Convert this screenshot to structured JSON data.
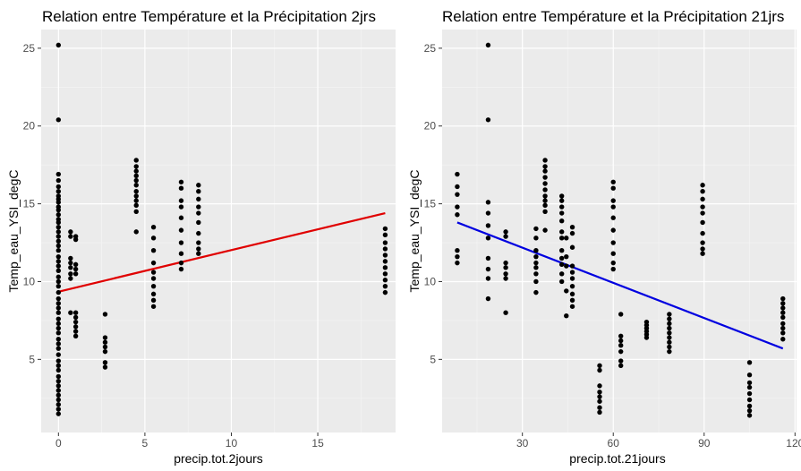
{
  "colors": {
    "panel_background": "#ebebeb",
    "grid_major": "#ffffff",
    "grid_minor": "#f5f5f5",
    "points": "#000000",
    "tick_text": "#4d4d4d"
  },
  "chart_data": [
    {
      "type": "scatter",
      "title": "Relation entre Température et la Précipitation 2jrs",
      "xlabel": "precip.tot.2jours",
      "ylabel": "Temp_eau_YSI_degC",
      "xlim": [
        -1,
        19.5
      ],
      "ylim": [
        0.3,
        26.2
      ],
      "x_ticks": [
        0,
        5,
        10,
        15
      ],
      "y_ticks": [
        5,
        10,
        15,
        20,
        25
      ],
      "grid": true,
      "trend_color": "#e00000",
      "trend_line": {
        "x": [
          0,
          18.9
        ],
        "y": [
          9.35,
          14.4
        ]
      },
      "points": [
        [
          0,
          25.2
        ],
        [
          0,
          20.4
        ],
        [
          0,
          16.9
        ],
        [
          0,
          16.5
        ],
        [
          0,
          16.1
        ],
        [
          0,
          15.8
        ],
        [
          0,
          15.5
        ],
        [
          0,
          15.3
        ],
        [
          0,
          15.1
        ],
        [
          0,
          14.8
        ],
        [
          0,
          14.6
        ],
        [
          0,
          14.3
        ],
        [
          0,
          14.0
        ],
        [
          0,
          13.8
        ],
        [
          0,
          13.5
        ],
        [
          0,
          13.2
        ],
        [
          0,
          12.9
        ],
        [
          0,
          12.6
        ],
        [
          0,
          12.3
        ],
        [
          0,
          12.0
        ],
        [
          0,
          11.6
        ],
        [
          0,
          11.3
        ],
        [
          0,
          11.0
        ],
        [
          0,
          10.7
        ],
        [
          0,
          10.3
        ],
        [
          0,
          10.0
        ],
        [
          0,
          9.7
        ],
        [
          0,
          9.3
        ],
        [
          0,
          8.9
        ],
        [
          0,
          8.6
        ],
        [
          0,
          8.3
        ],
        [
          0,
          8.0
        ],
        [
          0,
          7.6
        ],
        [
          0,
          7.3
        ],
        [
          0,
          7.0
        ],
        [
          0,
          6.7
        ],
        [
          0,
          6.3
        ],
        [
          0,
          6.0
        ],
        [
          0,
          5.7
        ],
        [
          0,
          5.3
        ],
        [
          0,
          4.9
        ],
        [
          0,
          4.6
        ],
        [
          0,
          4.3
        ],
        [
          0,
          3.9
        ],
        [
          0,
          3.6
        ],
        [
          0,
          3.3
        ],
        [
          0,
          3.0
        ],
        [
          0,
          2.7
        ],
        [
          0,
          2.4
        ],
        [
          0,
          2.1
        ],
        [
          0,
          1.8
        ],
        [
          0,
          1.5
        ],
        [
          0.7,
          13.2
        ],
        [
          0.7,
          12.9
        ],
        [
          0.7,
          11.5
        ],
        [
          0.7,
          11.2
        ],
        [
          0.7,
          10.9
        ],
        [
          0.7,
          10.5
        ],
        [
          0.7,
          10.2
        ],
        [
          0.7,
          8.0
        ],
        [
          1.0,
          12.9
        ],
        [
          1.0,
          12.7
        ],
        [
          1.0,
          11.1
        ],
        [
          1.0,
          10.8
        ],
        [
          1.0,
          10.5
        ],
        [
          1.0,
          8.0
        ],
        [
          1.0,
          7.7
        ],
        [
          1.0,
          7.4
        ],
        [
          1.0,
          7.1
        ],
        [
          1.0,
          6.8
        ],
        [
          1.0,
          6.5
        ],
        [
          2.7,
          7.9
        ],
        [
          2.7,
          6.4
        ],
        [
          2.7,
          6.1
        ],
        [
          2.7,
          5.8
        ],
        [
          2.7,
          5.5
        ],
        [
          2.7,
          4.8
        ],
        [
          2.7,
          4.5
        ],
        [
          4.5,
          17.8
        ],
        [
          4.5,
          17.4
        ],
        [
          4.5,
          17.1
        ],
        [
          4.5,
          16.8
        ],
        [
          4.5,
          16.5
        ],
        [
          4.5,
          16.2
        ],
        [
          4.5,
          15.8
        ],
        [
          4.5,
          15.5
        ],
        [
          4.5,
          15.2
        ],
        [
          4.5,
          14.9
        ],
        [
          4.5,
          14.5
        ],
        [
          4.5,
          13.2
        ],
        [
          5.5,
          13.5
        ],
        [
          5.5,
          12.8
        ],
        [
          5.5,
          12.0
        ],
        [
          5.5,
          11.2
        ],
        [
          5.5,
          10.6
        ],
        [
          5.5,
          10.2
        ],
        [
          5.5,
          9.7
        ],
        [
          5.5,
          9.2
        ],
        [
          5.5,
          8.8
        ],
        [
          5.5,
          8.4
        ],
        [
          7.1,
          16.4
        ],
        [
          7.1,
          16.0
        ],
        [
          7.1,
          15.2
        ],
        [
          7.1,
          14.8
        ],
        [
          7.1,
          14.1
        ],
        [
          7.1,
          13.3
        ],
        [
          7.1,
          12.5
        ],
        [
          7.1,
          11.8
        ],
        [
          7.1,
          11.2
        ],
        [
          7.1,
          10.8
        ],
        [
          8.1,
          16.2
        ],
        [
          8.1,
          15.8
        ],
        [
          8.1,
          15.3
        ],
        [
          8.1,
          14.8
        ],
        [
          8.1,
          14.4
        ],
        [
          8.1,
          13.8
        ],
        [
          8.1,
          13.1
        ],
        [
          8.1,
          12.5
        ],
        [
          8.1,
          12.1
        ],
        [
          8.1,
          11.8
        ],
        [
          18.9,
          13.4
        ],
        [
          18.9,
          13.0
        ],
        [
          18.9,
          12.5
        ],
        [
          18.9,
          12.1
        ],
        [
          18.9,
          11.7
        ],
        [
          18.9,
          11.3
        ],
        [
          18.9,
          10.9
        ],
        [
          18.9,
          10.5
        ],
        [
          18.9,
          10.1
        ],
        [
          18.9,
          9.7
        ],
        [
          18.9,
          9.3
        ]
      ]
    },
    {
      "type": "scatter",
      "title": "Relation entre Température et la Précipitation 21jrs",
      "xlabel": "precip.tot.21jours",
      "ylabel": "Temp_eau_YSI_degC",
      "xlim": [
        3.5,
        120.5
      ],
      "ylim": [
        0.3,
        26.2
      ],
      "x_ticks": [
        30,
        60,
        90,
        120
      ],
      "y_ticks": [
        5,
        10,
        15,
        20,
        25
      ],
      "grid": true,
      "trend_color": "#0000e0",
      "trend_line": {
        "x": [
          8.5,
          116
        ],
        "y": [
          13.8,
          5.7
        ]
      },
      "points": [
        [
          8.5,
          16.9
        ],
        [
          8.5,
          16.1
        ],
        [
          8.5,
          15.6
        ],
        [
          8.5,
          14.8
        ],
        [
          8.5,
          14.3
        ],
        [
          8.5,
          12.0
        ],
        [
          8.5,
          11.6
        ],
        [
          8.5,
          11.2
        ],
        [
          18.7,
          25.2
        ],
        [
          18.7,
          20.4
        ],
        [
          18.7,
          15.1
        ],
        [
          18.7,
          14.4
        ],
        [
          18.7,
          13.6
        ],
        [
          18.7,
          12.8
        ],
        [
          18.7,
          11.5
        ],
        [
          18.7,
          10.8
        ],
        [
          18.7,
          10.2
        ],
        [
          18.7,
          8.9
        ],
        [
          24.5,
          13.2
        ],
        [
          24.5,
          12.9
        ],
        [
          24.5,
          11.2
        ],
        [
          24.5,
          10.9
        ],
        [
          24.5,
          10.5
        ],
        [
          24.5,
          10.2
        ],
        [
          24.5,
          8.0
        ],
        [
          34.5,
          13.4
        ],
        [
          34.5,
          12.8
        ],
        [
          34.5,
          12.0
        ],
        [
          34.5,
          11.6
        ],
        [
          34.5,
          11.2
        ],
        [
          34.5,
          10.9
        ],
        [
          34.5,
          10.5
        ],
        [
          34.5,
          10.0
        ],
        [
          34.5,
          9.3
        ],
        [
          37.5,
          17.8
        ],
        [
          37.5,
          17.4
        ],
        [
          37.5,
          17.1
        ],
        [
          37.5,
          16.7
        ],
        [
          37.5,
          16.3
        ],
        [
          37.5,
          15.9
        ],
        [
          37.5,
          15.5
        ],
        [
          37.5,
          15.2
        ],
        [
          37.5,
          14.9
        ],
        [
          37.5,
          14.5
        ],
        [
          37.5,
          13.3
        ],
        [
          43,
          15.5
        ],
        [
          43,
          15.2
        ],
        [
          43,
          14.8
        ],
        [
          43,
          14.4
        ],
        [
          43,
          13.9
        ],
        [
          43,
          13.2
        ],
        [
          43,
          12.8
        ],
        [
          43,
          12.0
        ],
        [
          43,
          11.5
        ],
        [
          43,
          11.1
        ],
        [
          43,
          10.5
        ],
        [
          43,
          10.0
        ],
        [
          44.5,
          12.8
        ],
        [
          44.5,
          11.6
        ],
        [
          44.5,
          11.0
        ],
        [
          44.5,
          9.4
        ],
        [
          44.5,
          7.8
        ],
        [
          46.5,
          13.5
        ],
        [
          46.5,
          13.1
        ],
        [
          46.5,
          12.2
        ],
        [
          46.5,
          11.0
        ],
        [
          46.5,
          10.6
        ],
        [
          46.5,
          10.2
        ],
        [
          46.5,
          9.7
        ],
        [
          46.5,
          9.2
        ],
        [
          46.5,
          8.8
        ],
        [
          46.5,
          8.4
        ],
        [
          55.5,
          4.6
        ],
        [
          55.5,
          4.3
        ],
        [
          55.5,
          3.3
        ],
        [
          55.5,
          2.9
        ],
        [
          55.5,
          2.6
        ],
        [
          55.5,
          2.3
        ],
        [
          55.5,
          1.9
        ],
        [
          55.5,
          1.6
        ],
        [
          60,
          16.4
        ],
        [
          60,
          16.0
        ],
        [
          60,
          15.2
        ],
        [
          60,
          14.8
        ],
        [
          60,
          14.1
        ],
        [
          60,
          13.3
        ],
        [
          60,
          12.5
        ],
        [
          60,
          11.8
        ],
        [
          60,
          11.2
        ],
        [
          60,
          10.8
        ],
        [
          62.5,
          7.9
        ],
        [
          62.5,
          6.5
        ],
        [
          62.5,
          6.2
        ],
        [
          62.5,
          5.9
        ],
        [
          62.5,
          5.5
        ],
        [
          62.5,
          4.9
        ],
        [
          62.5,
          4.6
        ],
        [
          71,
          7.4
        ],
        [
          71,
          7.2
        ],
        [
          71,
          7.0
        ],
        [
          71,
          6.8
        ],
        [
          71,
          6.6
        ],
        [
          71,
          6.4
        ],
        [
          78.5,
          7.9
        ],
        [
          78.5,
          7.6
        ],
        [
          78.5,
          7.3
        ],
        [
          78.5,
          7.0
        ],
        [
          78.5,
          6.7
        ],
        [
          78.5,
          6.4
        ],
        [
          78.5,
          6.1
        ],
        [
          78.5,
          5.8
        ],
        [
          78.5,
          5.5
        ],
        [
          89.5,
          16.2
        ],
        [
          89.5,
          15.8
        ],
        [
          89.5,
          15.3
        ],
        [
          89.5,
          14.8
        ],
        [
          89.5,
          14.4
        ],
        [
          89.5,
          13.8
        ],
        [
          89.5,
          13.1
        ],
        [
          89.5,
          12.5
        ],
        [
          89.5,
          12.1
        ],
        [
          89.5,
          11.8
        ],
        [
          105,
          4.8
        ],
        [
          105,
          4.0
        ],
        [
          105,
          3.5
        ],
        [
          105,
          3.2
        ],
        [
          105,
          2.8
        ],
        [
          105,
          2.4
        ],
        [
          105,
          2.0
        ],
        [
          105,
          1.7
        ],
        [
          105,
          1.4
        ],
        [
          116,
          8.9
        ],
        [
          116,
          8.6
        ],
        [
          116,
          8.3
        ],
        [
          116,
          8.0
        ],
        [
          116,
          7.7
        ],
        [
          116,
          7.3
        ],
        [
          116,
          7.0
        ],
        [
          116,
          6.7
        ],
        [
          116,
          6.3
        ]
      ]
    }
  ]
}
